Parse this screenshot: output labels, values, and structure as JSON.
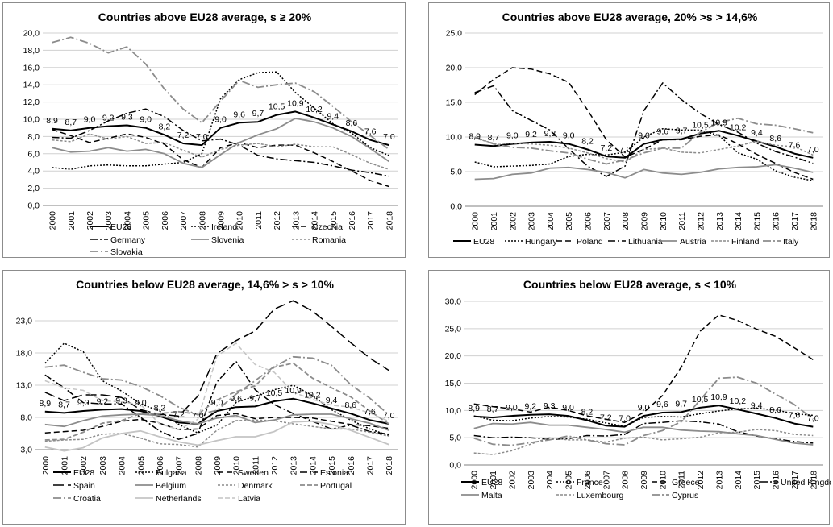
{
  "chart_data": [
    {
      "type": "line",
      "title": "Countries above EU28 average, s ≥ 20%",
      "categories": [
        "2000",
        "2001",
        "2002",
        "2003",
        "2004",
        "2005",
        "2006",
        "2007",
        "2008",
        "2009",
        "2010",
        "2011",
        "2012",
        "2013",
        "2014",
        "2015",
        "2016",
        "2017",
        "2018"
      ],
      "y_ticks": [
        "0,0",
        "2,0",
        "4,0",
        "6,0",
        "8,0",
        "10,0",
        "12,0",
        "14,0",
        "16,0",
        "18,0",
        "20,0"
      ],
      "ylim": [
        0,
        20
      ],
      "data_labels": [
        "8,9",
        "8,7",
        "9,0",
        "9,2",
        "9,3",
        "9,0",
        "8,2",
        "7,2",
        "7,0",
        "9,0",
        "9,6",
        "9,7",
        "10,5",
        "10,9",
        "10,2",
        "9,4",
        "8,6",
        "7,6",
        "7,0"
      ],
      "legend_cols": 3,
      "series": [
        {
          "name": "EU28",
          "color": "#000000",
          "width": 2,
          "dash": "",
          "values": [
            8.9,
            8.7,
            9.0,
            9.2,
            9.3,
            9.0,
            8.2,
            7.2,
            7.0,
            9.0,
            9.6,
            9.7,
            10.5,
            10.9,
            10.2,
            9.4,
            8.6,
            7.6,
            7.0
          ]
        },
        {
          "name": "Ireland",
          "color": "#000000",
          "width": 1.5,
          "dash": "2,2",
          "values": [
            4.4,
            4.2,
            4.6,
            4.7,
            4.6,
            4.6,
            4.8,
            5.0,
            6.0,
            12.4,
            14.6,
            15.4,
            15.5,
            13.1,
            11.3,
            9.5,
            8.4,
            6.7,
            5.8
          ]
        },
        {
          "name": "Czechia",
          "color": "#000000",
          "width": 1.5,
          "dash": "7,4",
          "values": [
            8.8,
            8.1,
            7.3,
            7.8,
            8.3,
            7.9,
            7.1,
            5.3,
            4.4,
            6.7,
            7.3,
            6.7,
            7.0,
            7.0,
            6.1,
            5.1,
            4.0,
            2.9,
            2.2
          ]
        },
        {
          "name": "Germany",
          "color": "#000000",
          "width": 1.5,
          "dash": "9,3,2,3",
          "values": [
            7.9,
            7.8,
            8.7,
            9.8,
            10.7,
            11.2,
            10.3,
            8.7,
            7.5,
            7.7,
            7.0,
            5.8,
            5.4,
            5.2,
            5.0,
            4.6,
            4.1,
            3.8,
            3.4
          ]
        },
        {
          "name": "Slovenia",
          "color": "#8c8c8c",
          "width": 1.8,
          "dash": "",
          "values": [
            6.7,
            6.2,
            6.3,
            6.7,
            6.3,
            6.5,
            6.0,
            4.9,
            4.4,
            5.9,
            7.3,
            8.2,
            8.9,
            10.1,
            9.7,
            9.0,
            8.0,
            6.6,
            5.1
          ]
        },
        {
          "name": "Romania",
          "color": "#8c8c8c",
          "width": 1.5,
          "dash": "3,2",
          "values": [
            7.6,
            7.4,
            8.3,
            7.7,
            8.0,
            7.2,
            7.3,
            6.4,
            5.6,
            6.5,
            7.0,
            7.2,
            6.8,
            7.1,
            6.8,
            6.8,
            5.9,
            4.9,
            4.2
          ]
        },
        {
          "name": "Slovakia",
          "color": "#8c8c8c",
          "width": 1.8,
          "dash": "10,3,2,3",
          "values": [
            18.9,
            19.5,
            18.8,
            17.7,
            18.4,
            16.4,
            13.5,
            11.2,
            9.6,
            12.1,
            14.5,
            13.7,
            14.0,
            14.2,
            13.2,
            11.5,
            9.7,
            8.1,
            6.5
          ]
        }
      ]
    },
    {
      "type": "line",
      "title": "Countries above EU28 average, 20% >s > 14,6%",
      "categories": [
        "2000",
        "2001",
        "2002",
        "2003",
        "2004",
        "2005",
        "2006",
        "2007",
        "2008",
        "2009",
        "2010",
        "2011",
        "2012",
        "2013",
        "2014",
        "2015",
        "2016",
        "2017",
        "2018"
      ],
      "y_ticks": [
        "0,0",
        "5,0",
        "10,0",
        "15,0",
        "20,0",
        "25,0"
      ],
      "ylim": [
        0,
        25
      ],
      "data_labels": [
        "8,9",
        "8,7",
        "9,0",
        "9,2",
        "9,3",
        "9,0",
        "8,2",
        "7,2",
        "7,0",
        "9,0",
        "9,6",
        "9,7",
        "10,5",
        "10,9",
        "10,2",
        "9,4",
        "8,6",
        "7,6",
        "7,0"
      ],
      "legend_cols": 7,
      "series": [
        {
          "name": "EU28",
          "color": "#000000",
          "width": 2,
          "dash": "",
          "values": [
            8.9,
            8.7,
            9.0,
            9.2,
            9.3,
            9.0,
            8.2,
            7.2,
            7.0,
            9.0,
            9.6,
            9.7,
            10.5,
            10.9,
            10.2,
            9.4,
            8.6,
            7.6,
            7.0
          ]
        },
        {
          "name": "Hungary",
          "color": "#000000",
          "width": 1.5,
          "dash": "2,2",
          "values": [
            6.4,
            5.7,
            5.8,
            5.9,
            6.1,
            7.2,
            7.5,
            7.4,
            7.8,
            10.0,
            11.2,
            11.0,
            11.0,
            10.2,
            7.7,
            6.8,
            5.1,
            4.2,
            3.7
          ]
        },
        {
          "name": "Poland",
          "color": "#000000",
          "width": 1.5,
          "dash": "7,4",
          "values": [
            16.1,
            18.3,
            20.0,
            19.8,
            19.1,
            17.9,
            13.9,
            9.6,
            7.1,
            8.2,
            9.6,
            9.6,
            10.1,
            10.3,
            9.0,
            7.5,
            6.2,
            4.9,
            3.9
          ]
        },
        {
          "name": "Lithuania",
          "color": "#000000",
          "width": 1.5,
          "dash": "9,3,2,3",
          "values": [
            16.4,
            17.4,
            13.8,
            12.4,
            11.0,
            8.3,
            5.8,
            4.3,
            5.8,
            13.8,
            17.8,
            15.4,
            13.4,
            11.8,
            10.7,
            9.1,
            7.9,
            7.1,
            6.2
          ]
        },
        {
          "name": "Austria",
          "color": "#8c8c8c",
          "width": 1.8,
          "dash": "",
          "values": [
            3.9,
            4.0,
            4.6,
            4.8,
            5.5,
            5.6,
            5.3,
            4.9,
            4.1,
            5.3,
            4.8,
            4.6,
            4.9,
            5.4,
            5.6,
            5.7,
            6.0,
            5.5,
            4.9
          ]
        },
        {
          "name": "Finland",
          "color": "#8c8c8c",
          "width": 1.5,
          "dash": "3,2",
          "values": [
            9.8,
            9.1,
            9.1,
            9.0,
            8.8,
            8.4,
            7.7,
            6.9,
            6.4,
            8.2,
            8.4,
            7.8,
            7.7,
            8.2,
            8.7,
            9.4,
            8.8,
            8.6,
            7.4
          ]
        },
        {
          "name": "Italy",
          "color": "#8c8c8c",
          "width": 1.8,
          "dash": "10,3,2,3",
          "values": [
            10.0,
            9.0,
            8.5,
            8.4,
            8.0,
            7.7,
            6.8,
            6.1,
            6.7,
            7.7,
            8.4,
            8.4,
            10.7,
            12.1,
            12.7,
            11.9,
            11.7,
            11.2,
            10.6
          ]
        }
      ]
    },
    {
      "type": "line",
      "title": "Countries below EU28 average, 14,6% > s > 10%",
      "categories": [
        "2000",
        "2001",
        "2002",
        "2003",
        "2004",
        "2005",
        "2006",
        "2007",
        "2008",
        "2009",
        "2010",
        "2011",
        "2012",
        "2013",
        "2014",
        "2015",
        "2016",
        "2017",
        "2018"
      ],
      "y_ticks": [
        "3,0",
        "8,0",
        "13,0",
        "18,0",
        "23,0"
      ],
      "ylim": [
        3,
        26.5
      ],
      "data_labels": [
        "8,9",
        "8,7",
        "9,0",
        "9,2",
        "9,3",
        "9,0",
        "8,2",
        "7,2",
        "7,0",
        "9,0",
        "9,6",
        "9,7",
        "10,5",
        "10,9",
        "10,2",
        "9,4",
        "8,6",
        "7,6",
        "7,0"
      ],
      "legend_cols": 4,
      "series": [
        {
          "name": "EU28",
          "color": "#000000",
          "width": 2,
          "dash": "",
          "values": [
            8.9,
            8.7,
            9.0,
            9.2,
            9.3,
            9.0,
            8.2,
            7.2,
            7.0,
            9.0,
            9.6,
            9.7,
            10.5,
            10.9,
            10.2,
            9.4,
            8.6,
            7.6,
            7.0
          ]
        },
        {
          "name": "Bulgaria",
          "color": "#000000",
          "width": 1.5,
          "dash": "2,2",
          "values": [
            16.4,
            19.5,
            18.2,
            13.7,
            12.1,
            10.1,
            9.0,
            6.9,
            5.6,
            6.8,
            10.3,
            11.3,
            12.3,
            13.0,
            11.4,
            9.2,
            7.6,
            6.2,
            5.2
          ]
        },
        {
          "name": "Sweden",
          "color": "#000000",
          "width": 1.5,
          "dash": "7,4",
          "values": [
            5.6,
            5.8,
            6.0,
            6.6,
            7.4,
            7.7,
            7.1,
            6.1,
            6.2,
            8.3,
            8.6,
            7.8,
            8.0,
            8.0,
            7.9,
            7.4,
            6.9,
            6.7,
            6.3
          ]
        },
        {
          "name": "Estonia",
          "color": "#000000",
          "width": 1.5,
          "dash": "9,3,2,3",
          "values": [
            14.6,
            12.6,
            10.3,
            10.1,
            10.1,
            8.0,
            5.9,
            4.6,
            5.5,
            13.5,
            16.7,
            12.3,
            10.0,
            8.6,
            7.4,
            6.2,
            6.8,
            5.8,
            5.4
          ]
        },
        {
          "name": "Spain",
          "color": "#000000",
          "width": 1.5,
          "dash": "13,5",
          "values": [
            11.9,
            10.6,
            11.5,
            11.5,
            11.1,
            9.2,
            8.5,
            8.2,
            11.3,
            17.9,
            19.9,
            21.4,
            24.8,
            26.1,
            24.5,
            22.1,
            19.6,
            17.2,
            15.3
          ]
        },
        {
          "name": "Belgium",
          "color": "#8c8c8c",
          "width": 1.8,
          "dash": "",
          "values": [
            6.9,
            6.6,
            7.5,
            8.2,
            8.4,
            8.5,
            8.3,
            7.5,
            7.0,
            7.9,
            8.3,
            7.2,
            7.6,
            8.4,
            8.5,
            8.5,
            7.8,
            7.1,
            6.0
          ]
        },
        {
          "name": "Denmark",
          "color": "#8c8c8c",
          "width": 1.5,
          "dash": "3,2",
          "values": [
            4.3,
            4.5,
            4.6,
            5.4,
            5.5,
            4.8,
            3.9,
            3.8,
            3.4,
            6.0,
            7.5,
            7.6,
            7.5,
            7.0,
            6.6,
            6.2,
            6.2,
            5.7,
            5.1
          ]
        },
        {
          "name": "Portugal",
          "color": "#8c8c8c",
          "width": 1.8,
          "dash": "6,3",
          "values": [
            4.5,
            4.6,
            5.7,
            7.1,
            7.5,
            8.6,
            8.6,
            8.9,
            8.5,
            10.7,
            12.0,
            12.9,
            15.8,
            16.4,
            14.1,
            12.6,
            11.2,
            9.0,
            7.0
          ]
        },
        {
          "name": "Croatia",
          "color": "#8c8c8c",
          "width": 1.8,
          "dash": "10,3,2,3",
          "values": [
            15.8,
            16.1,
            15.0,
            14.0,
            13.8,
            12.8,
            11.4,
            9.6,
            8.4,
            9.1,
            11.6,
            13.7,
            15.9,
            17.4,
            17.2,
            16.1,
            13.1,
            11.0,
            8.4
          ]
        },
        {
          "name": "Netherlands",
          "color": "#c4c4c4",
          "width": 1.8,
          "dash": "",
          "values": [
            3.4,
            2.8,
            3.3,
            4.8,
            5.5,
            5.9,
            5.0,
            4.2,
            3.7,
            4.4,
            5.0,
            5.0,
            5.8,
            7.3,
            7.4,
            6.9,
            6.0,
            4.9,
            3.8
          ]
        },
        {
          "name": "Latvia",
          "color": "#c4c4c4",
          "width": 1.5,
          "dash": "6,3",
          "values": [
            13.7,
            12.6,
            12.2,
            10.6,
            10.4,
            10.0,
            7.0,
            6.1,
            7.7,
            17.5,
            19.5,
            16.2,
            15.0,
            11.9,
            10.8,
            9.9,
            9.6,
            8.7,
            7.4
          ]
        }
      ]
    },
    {
      "type": "line",
      "title": "Countries below EU28 average, s < 10%",
      "categories": [
        "2000",
        "2001",
        "2002",
        "2003",
        "2004",
        "2005",
        "2006",
        "2007",
        "2008",
        "2009",
        "2010",
        "2011",
        "2012",
        "2013",
        "2014",
        "2015",
        "2016",
        "2017",
        "2018"
      ],
      "y_ticks": [
        "0,0",
        "5,0",
        "10,0",
        "15,0",
        "20,0",
        "25,0",
        "30,0"
      ],
      "ylim": [
        0,
        30
      ],
      "data_labels": [
        "8,9",
        "8,7",
        "9,0",
        "9,2",
        "9,3",
        "9,0",
        "8,2",
        "7,2",
        "7,0",
        "9,0",
        "9,6",
        "9,7",
        "10,5",
        "10,9",
        "10,2",
        "9,4",
        "8,6",
        "7,6",
        "7,0"
      ],
      "legend_cols": 4,
      "series": [
        {
          "name": "EU28",
          "color": "#000000",
          "width": 2,
          "dash": "",
          "values": [
            8.9,
            8.7,
            9.0,
            9.2,
            9.3,
            9.0,
            8.2,
            7.2,
            7.0,
            9.0,
            9.6,
            9.7,
            10.5,
            10.9,
            10.2,
            9.4,
            8.6,
            7.6,
            7.0
          ]
        },
        {
          "name": "France",
          "color": "#000000",
          "width": 1.5,
          "dash": "2,2",
          "values": [
            9.0,
            8.2,
            8.1,
            8.6,
            8.9,
            8.8,
            8.4,
            7.7,
            7.1,
            8.7,
            8.9,
            8.8,
            9.4,
            9.9,
            10.3,
            10.4,
            10.1,
            9.4,
            9.1
          ]
        },
        {
          "name": "Greece",
          "color": "#000000",
          "width": 1.5,
          "dash": "7,4",
          "values": [
            11.2,
            10.7,
            10.3,
            9.7,
            10.6,
            10.0,
            9.0,
            8.4,
            7.8,
            9.6,
            12.7,
            17.9,
            24.5,
            27.5,
            26.5,
            24.9,
            23.6,
            21.5,
            19.3
          ]
        },
        {
          "name": "United Kingdom",
          "color": "#000000",
          "width": 1.5,
          "dash": "9,3,2,3",
          "values": [
            5.4,
            5.0,
            5.1,
            5.0,
            4.7,
            4.8,
            5.4,
            5.3,
            5.6,
            7.6,
            7.8,
            8.1,
            7.9,
            7.5,
            6.1,
            5.3,
            4.8,
            4.3,
            4.0
          ]
        },
        {
          "name": "Malta",
          "color": "#8c8c8c",
          "width": 1.8,
          "dash": "",
          "values": [
            6.7,
            7.6,
            7.5,
            7.8,
            7.3,
            7.3,
            6.9,
            6.5,
            6.0,
            6.9,
            6.9,
            6.4,
            6.2,
            6.1,
            5.7,
            5.4,
            4.7,
            4.0,
            3.7
          ]
        },
        {
          "name": "Luxembourg",
          "color": "#8c8c8c",
          "width": 1.5,
          "dash": "3,2",
          "values": [
            2.2,
            1.9,
            2.6,
            3.8,
            5.0,
            4.6,
            4.6,
            4.2,
            4.9,
            5.1,
            4.6,
            4.8,
            5.1,
            5.9,
            6.0,
            6.5,
            6.3,
            5.6,
            5.4
          ]
        },
        {
          "name": "Cyprus",
          "color": "#8c8c8c",
          "width": 1.8,
          "dash": "10,3,2,3",
          "values": [
            4.9,
            3.8,
            3.6,
            4.1,
            4.6,
            5.3,
            4.6,
            3.9,
            3.7,
            5.4,
            6.3,
            7.9,
            11.9,
            15.9,
            16.1,
            15.0,
            13.0,
            11.1,
            8.4
          ]
        }
      ]
    }
  ]
}
